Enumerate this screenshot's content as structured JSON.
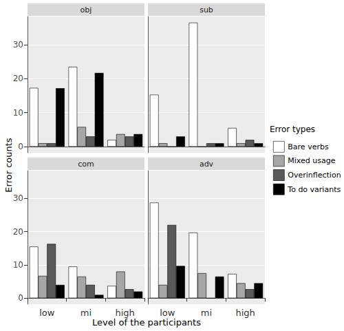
{
  "chart_data": {
    "type": "bar",
    "x_label": "Level of the participants",
    "y_label": "Error counts",
    "legend_title": "Error types",
    "legend": "right",
    "grid": true,
    "categories": [
      "low",
      "mi",
      "high"
    ],
    "ylim": [
      -1.8,
      38.3
    ],
    "yticks": [
      0,
      10,
      20,
      30
    ],
    "series": [
      {
        "name": "Bare verbs",
        "color": "#ffffff"
      },
      {
        "name": "Mixed usage",
        "color": "#a6a6a6"
      },
      {
        "name": "Overinflection",
        "color": "#595959"
      },
      {
        "name": "To do variants",
        "color": "#000000"
      }
    ],
    "panels": [
      {
        "title": "obj",
        "values": [
          [
            17.3,
            23.5,
            2
          ],
          [
            1,
            5.8,
            3.7
          ],
          [
            1,
            3,
            3
          ],
          [
            17.2,
            21.7,
            3.7
          ]
        ]
      },
      {
        "title": "sub",
        "values": [
          [
            15.3,
            36.5,
            5.5
          ],
          [
            1,
            0,
            1
          ],
          [
            0,
            1,
            2
          ],
          [
            3,
            1,
            1
          ]
        ]
      },
      {
        "title": "com",
        "values": [
          [
            15.5,
            9.5,
            3.7
          ],
          [
            6.7,
            6.5,
            8
          ],
          [
            16.3,
            4,
            2.7
          ],
          [
            4,
            1,
            2
          ]
        ]
      },
      {
        "title": "adv",
        "values": [
          [
            28.7,
            19.7,
            7.3
          ],
          [
            4,
            7.5,
            4.5
          ],
          [
            22,
            0,
            2.7
          ],
          [
            9.7,
            6.5,
            4.5
          ]
        ]
      }
    ]
  }
}
